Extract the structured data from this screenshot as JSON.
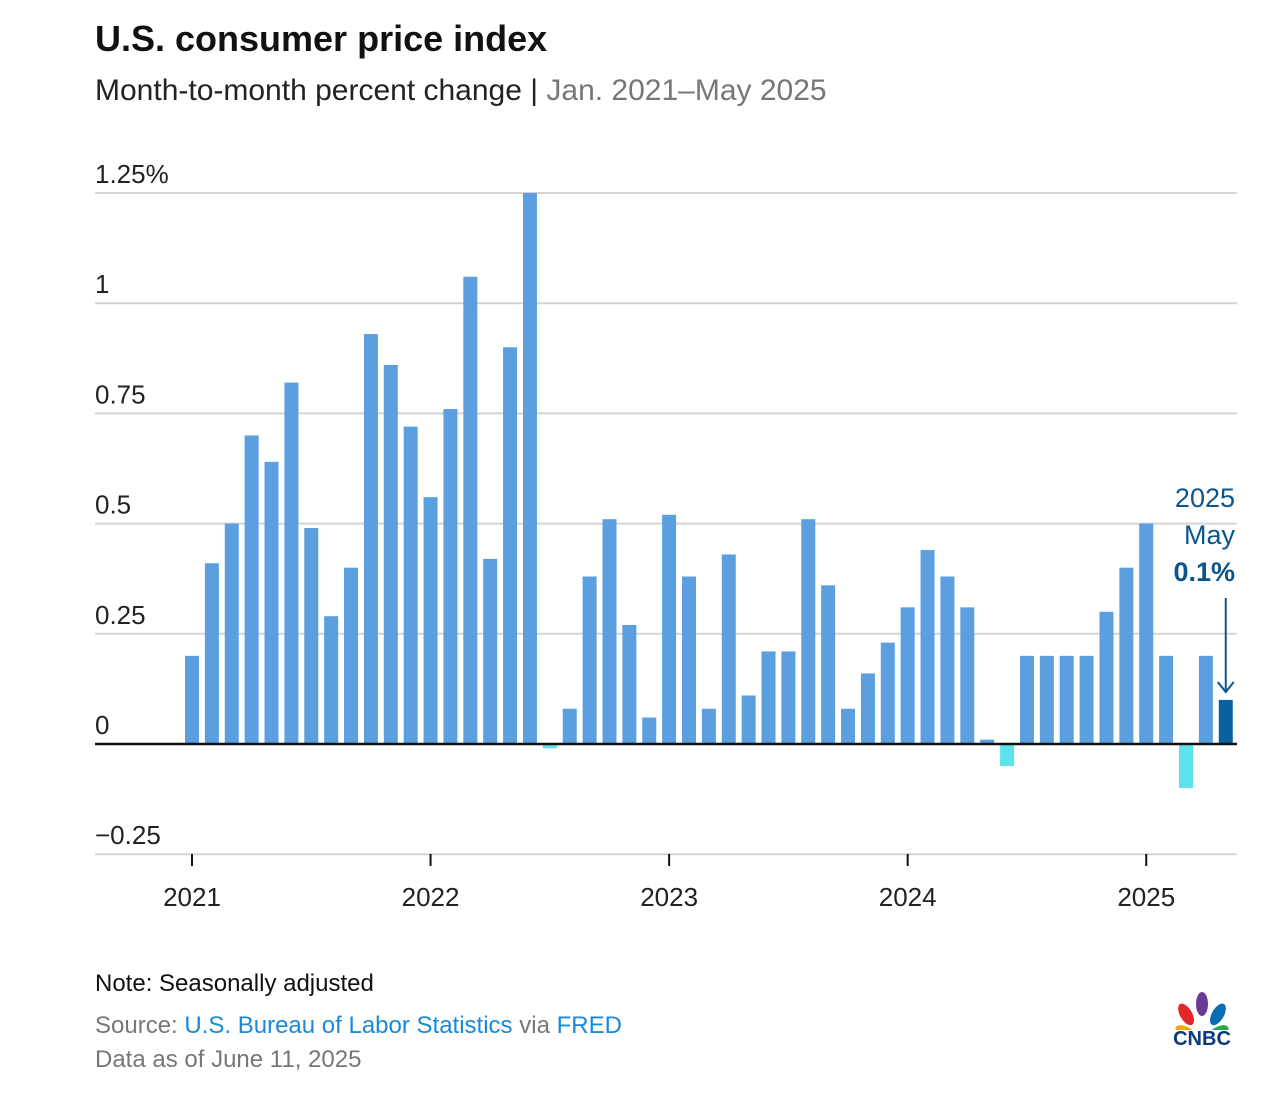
{
  "title": "U.S. consumer price index",
  "subtitle": {
    "main": "Month-to-month percent change",
    "separator": " | ",
    "range": "Jan. 2021–May 2025"
  },
  "note": "Note: Seasonally adjusted",
  "source": {
    "prefix": "Source: ",
    "org": "U.S. Bureau of Labor Statistics",
    "via": " via ",
    "fred": "FRED"
  },
  "as_of": "Data as of June 11, 2025",
  "logo": "CNBC",
  "colors": {
    "positive": "#5b9fe0",
    "negative": "#5ce3ec",
    "highlight": "#0a619f",
    "annotation": "#0a5590",
    "grid": "#d4d4d4"
  },
  "chart_data": {
    "type": "bar",
    "title": "U.S. consumer price index",
    "xlabel": "",
    "ylabel": "Month-to-month percent change",
    "ylim": [
      -0.25,
      1.25
    ],
    "yticks": [
      -0.25,
      0,
      0.25,
      0.5,
      0.75,
      1,
      1.25
    ],
    "ytick_labels": [
      "−0.25",
      "0",
      "0.25",
      "0.5",
      "0.75",
      "1",
      "1.25%"
    ],
    "xtick_labels": [
      "2021",
      "2022",
      "2023",
      "2024",
      "2025"
    ],
    "start": "2021-01",
    "values": [
      0.2,
      0.41,
      0.5,
      0.7,
      0.64,
      0.82,
      0.49,
      0.29,
      0.4,
      0.93,
      0.86,
      0.72,
      0.56,
      0.76,
      1.06,
      0.42,
      0.9,
      1.25,
      -0.01,
      0.08,
      0.38,
      0.51,
      0.27,
      0.06,
      0.52,
      0.38,
      0.08,
      0.43,
      0.11,
      0.21,
      0.21,
      0.51,
      0.36,
      0.08,
      0.16,
      0.23,
      0.31,
      0.44,
      0.38,
      0.31,
      0.01,
      -0.05,
      0.2,
      0.2,
      0.2,
      0.2,
      0.3,
      0.4,
      0.5,
      0.2,
      -0.1,
      0.2,
      0.1
    ],
    "annotation": {
      "year": "2025",
      "month": "May",
      "value": "0.1%"
    }
  }
}
